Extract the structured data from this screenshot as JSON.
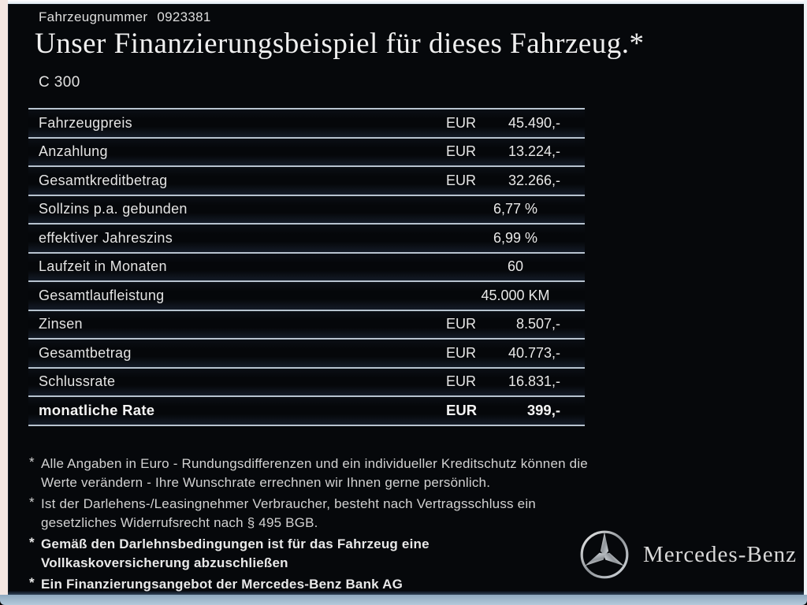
{
  "header": {
    "vehicle_number_label": "Fahrzeugnummer",
    "vehicle_number": "0923381",
    "title": "Unser Finanzierungsbeispiel für dieses Fahrzeug.*",
    "model": "C 300"
  },
  "financing_table": {
    "rows": [
      {
        "label": "Fahrzeugpreis",
        "currency": "EUR",
        "value": "45.490,-",
        "bold": false
      },
      {
        "label": "Anzahlung",
        "currency": "EUR",
        "value": "13.224,-",
        "bold": false
      },
      {
        "label": "Gesamtkreditbetrag",
        "currency": "EUR",
        "value": "32.266,-",
        "bold": false
      },
      {
        "label": "Sollzins p.a. gebunden",
        "currency": "",
        "value": "6,77 %",
        "bold": false
      },
      {
        "label": "effektiver Jahreszins",
        "currency": "",
        "value": "6,99 %",
        "bold": false
      },
      {
        "label": "Laufzeit in Monaten",
        "currency": "",
        "value": "60",
        "bold": false
      },
      {
        "label": "Gesamtlaufleistung",
        "currency": "",
        "value": "45.000 KM",
        "bold": false
      },
      {
        "label": "Zinsen",
        "currency": "EUR",
        "value": "8.507,-",
        "bold": false
      },
      {
        "label": "Gesamtbetrag",
        "currency": "EUR",
        "value": "40.773,-",
        "bold": false
      },
      {
        "label": "Schlussrate",
        "currency": "EUR",
        "value": "16.831,-",
        "bold": false
      },
      {
        "label": "monatliche Rate",
        "currency": "EUR",
        "value": "399,-",
        "bold": true
      }
    ]
  },
  "footnotes": [
    {
      "marker": "*",
      "bold": false,
      "text": "Alle Angaben in Euro - Rundungsdifferenzen und ein individueller Kreditschutz können die\nWerte verändern - Ihre Wunschrate errechnen wir Ihnen gerne persönlich."
    },
    {
      "marker": "*",
      "bold": false,
      "text": "Ist der Darlehens-/Leasingnehmer Verbraucher, besteht nach Vertragsschluss ein\ngesetzliches Widerrufsrecht nach § 495 BGB."
    },
    {
      "marker": "*",
      "bold": true,
      "text": "Gemäß den Darlehnsbedingungen ist für das Fahrzeug eine\nVollkaskoversicherung abzuschließen"
    },
    {
      "marker": "*",
      "bold": true,
      "text": "Ein Finanzierungsangebot der Mercedes-Benz Bank AG"
    }
  ],
  "brand": {
    "logo_icon": "mercedes-star-icon",
    "name": "Mercedes-Benz"
  },
  "colors": {
    "panel_background": "#06080b",
    "table_separator": "#b7c3cf",
    "frame_left": "#f3e6e2",
    "frame_bottom": "#a9c0d4",
    "text_primary": "#e6e6e6"
  }
}
